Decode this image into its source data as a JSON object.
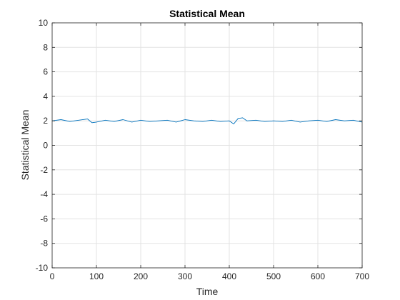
{
  "chart_data": {
    "type": "line",
    "title": "Statistical Mean",
    "xlabel": "Time",
    "ylabel": "Statistical Mean",
    "xlim": [
      0,
      700
    ],
    "ylim": [
      -10,
      10
    ],
    "xticks": [
      0,
      100,
      200,
      300,
      400,
      500,
      600,
      700
    ],
    "yticks": [
      -10,
      -8,
      -6,
      -4,
      -2,
      0,
      2,
      4,
      6,
      8,
      10
    ],
    "grid": true,
    "series": [
      {
        "color": "#0072BD",
        "x": [
          0,
          20,
          40,
          60,
          80,
          90,
          100,
          120,
          140,
          160,
          180,
          200,
          220,
          240,
          260,
          280,
          300,
          320,
          340,
          360,
          380,
          400,
          410,
          420,
          430,
          440,
          460,
          480,
          500,
          520,
          540,
          560,
          580,
          600,
          620,
          640,
          660,
          680,
          700
        ],
        "y": [
          2.0,
          2.1,
          1.95,
          2.05,
          2.15,
          1.85,
          1.9,
          2.05,
          1.95,
          2.1,
          1.9,
          2.05,
          1.95,
          2.0,
          2.05,
          1.9,
          2.1,
          2.0,
          1.95,
          2.05,
          1.95,
          2.0,
          1.75,
          2.2,
          2.25,
          2.0,
          2.05,
          1.95,
          2.0,
          1.95,
          2.05,
          1.9,
          2.0,
          2.05,
          1.95,
          2.1,
          2.0,
          2.05,
          1.9
        ]
      }
    ]
  }
}
